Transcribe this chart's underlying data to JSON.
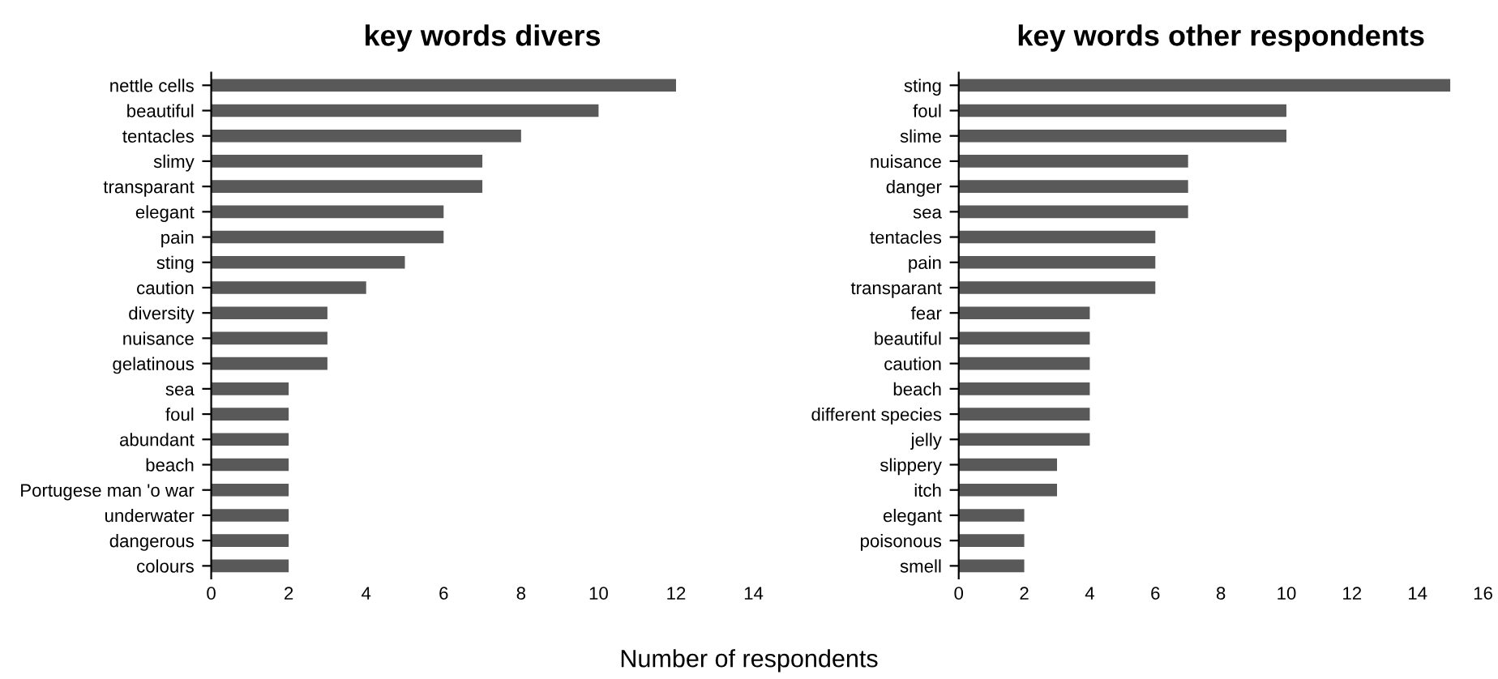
{
  "chart_data": [
    {
      "type": "bar",
      "orientation": "horizontal",
      "title": "key words divers",
      "xlabel": "Number of respondents",
      "categories": [
        "nettle cells",
        "beautiful",
        "tentacles",
        "slimy",
        "transparant",
        "elegant",
        "pain",
        "sting",
        "caution",
        "diversity",
        "nuisance",
        "gelatinous",
        "sea",
        "foul",
        "abundant",
        "beach",
        "Portugese man 'o war",
        "underwater",
        "dangerous",
        "colours"
      ],
      "values": [
        12,
        10,
        8,
        7,
        7,
        6,
        6,
        5,
        4,
        3,
        3,
        3,
        2,
        2,
        2,
        2,
        2,
        2,
        2,
        2
      ],
      "color": "#595959",
      "xlim": [
        0,
        14
      ],
      "xticks": [
        0,
        2,
        4,
        6,
        8,
        10,
        12,
        14
      ],
      "grid": false
    },
    {
      "type": "bar",
      "orientation": "horizontal",
      "title": "key words other respondents",
      "categories": [
        "sting",
        "foul",
        "slime",
        "nuisance",
        "danger",
        "sea",
        "tentacles",
        "pain",
        "transparant",
        "fear",
        "beautiful",
        "caution",
        "beach",
        "different species",
        "jelly",
        "slippery",
        "itch",
        "elegant",
        "poisonous",
        "smell"
      ],
      "values": [
        15,
        10,
        10,
        7,
        7,
        7,
        6,
        6,
        6,
        4,
        4,
        4,
        4,
        4,
        4,
        3,
        3,
        2,
        2,
        2
      ],
      "color": "#595959",
      "xlim": [
        0,
        16
      ],
      "xticks": [
        0,
        2,
        4,
        6,
        8,
        10,
        12,
        14,
        16
      ],
      "grid": false
    }
  ]
}
